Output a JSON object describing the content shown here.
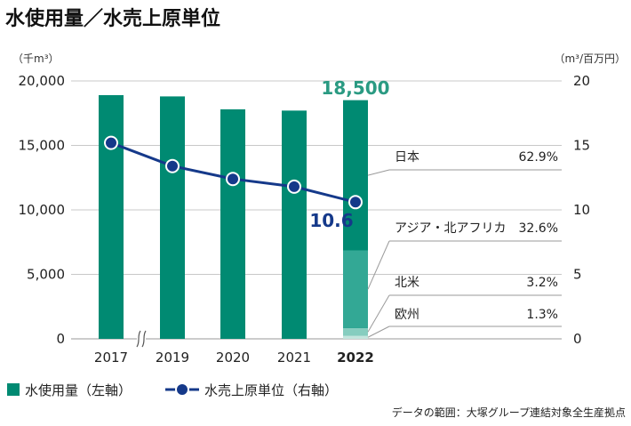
{
  "page": {
    "title": "水使用量／水売上原単位",
    "footnote": "データの範囲：大塚グループ連結対象全生産拠点"
  },
  "colors": {
    "bar": "#008a72",
    "line": "#15398a",
    "seg_japan": "#008a72",
    "seg_asia": "#33a895",
    "seg_na": "#86cdbf",
    "seg_eu": "#c3e5dd",
    "value_label": "#2a9a82"
  },
  "chart_data": {
    "type": "bar",
    "categories": [
      "2017",
      "2019",
      "2020",
      "2021",
      "2022"
    ],
    "axis_break_after": "2017",
    "left_axis": {
      "unit": "（千m³）",
      "min": 0,
      "max": 20000,
      "ticks": [
        "0",
        "5,000",
        "10,000",
        "15,000",
        "20,000"
      ]
    },
    "right_axis": {
      "unit": "（m³/百万円）",
      "min": 0,
      "max": 20,
      "ticks": [
        "0",
        "5",
        "10",
        "15",
        "20"
      ]
    },
    "grid": true,
    "series": [
      {
        "name": "水使用量（左軸）",
        "kind": "bar",
        "axis": "left",
        "values": [
          18900,
          18800,
          17800,
          17700,
          18500
        ]
      },
      {
        "name": "水売上原単位（右軸）",
        "kind": "line",
        "axis": "right",
        "values": [
          15.2,
          13.4,
          12.4,
          11.8,
          10.6
        ]
      }
    ],
    "highlight": {
      "bar_value_label": "18,500",
      "line_value_label": "10.6"
    },
    "breakdown_2022": [
      {
        "region": "日本",
        "share": "62.9%",
        "fraction": 0.629
      },
      {
        "region": "アジア・北アフリカ",
        "share": "32.6%",
        "fraction": 0.326
      },
      {
        "region": "北米",
        "share": "3.2%",
        "fraction": 0.032
      },
      {
        "region": "欧州",
        "share": "1.3%",
        "fraction": 0.013
      }
    ]
  }
}
